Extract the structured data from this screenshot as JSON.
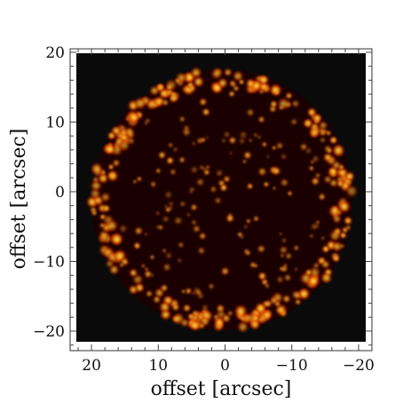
{
  "chart_data": {
    "type": "heatmap",
    "title": "",
    "xlabel": "offset [arcsec]",
    "ylabel": "offset [arcsec]",
    "xlim": [
      23.2,
      -22
    ],
    "ylim": [
      -22.8,
      20.5
    ],
    "x_ticks": [
      {
        "value": 20,
        "label": "20"
      },
      {
        "value": 10,
        "label": "10"
      },
      {
        "value": 0,
        "label": "0"
      },
      {
        "value": -10,
        "label": "−10"
      },
      {
        "value": -20,
        "label": "−20"
      }
    ],
    "y_ticks": [
      {
        "value": 20,
        "label": "20"
      },
      {
        "value": 10,
        "label": "10"
      },
      {
        "value": 0,
        "label": "0"
      },
      {
        "value": -10,
        "label": "−10"
      },
      {
        "value": -20,
        "label": "−20"
      }
    ],
    "x_reversed": true,
    "grid": false,
    "colormap": "hot",
    "background_color": "#0a0a0a",
    "circle": {
      "center": [
        0.4,
        -1.2
      ],
      "radius": 19.5
    },
    "colors": {
      "low": "#000000",
      "mid": "#e02000",
      "high": "#ffd500",
      "peak": "#ffff9a"
    }
  }
}
